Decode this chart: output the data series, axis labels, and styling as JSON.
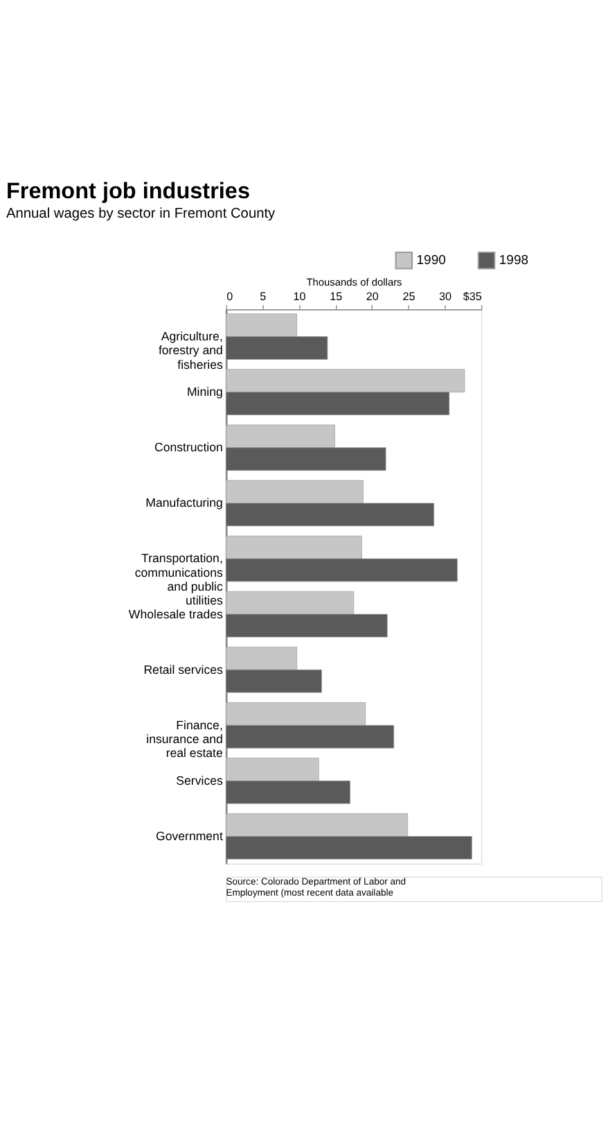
{
  "chart_data": {
    "type": "bar",
    "orientation": "horizontal",
    "title": "Fremont job industries",
    "subtitle": "Annual wages by sector in Fremont County",
    "xlabel": "Thousands of dollars",
    "categories": [
      "Agriculture, forestry and fisheries",
      "Mining",
      "Construction",
      "Manufacturing",
      "Transportation, communications and public utilities",
      "Wholesale trades",
      "Retail services",
      "Finance, insurance and real estate",
      "Services",
      "Government"
    ],
    "series": [
      {
        "name": "1990",
        "color": "#c6c6c6",
        "values": [
          9.7,
          32.7,
          14.9,
          18.8,
          18.6,
          17.5,
          9.7,
          19.1,
          12.7,
          24.9
        ]
      },
      {
        "name": "1998",
        "color": "#5a5a5a",
        "values": [
          13.9,
          30.6,
          21.9,
          28.5,
          31.7,
          22.1,
          13.1,
          23.0,
          17.0,
          33.7
        ]
      }
    ],
    "xlim": [
      0,
      35
    ],
    "xticks": [
      0,
      5,
      10,
      15,
      20,
      25,
      30,
      {
        "value": 35,
        "label": "$35"
      }
    ],
    "legend": "top right",
    "grid": false,
    "annotations": [
      "Source: Colorado Department of Labor and Employment (most recent data available"
    ]
  }
}
